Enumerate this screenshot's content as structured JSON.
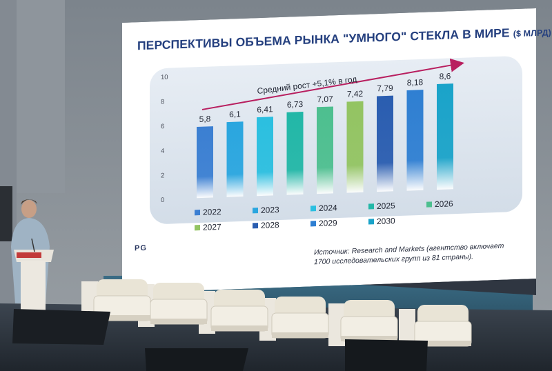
{
  "slide": {
    "title": "ПЕРСПЕКТИВЫ ОБЪЕМА РЫНКА \"УМНОГО\" СТЕКЛА В МИРЕ",
    "unit": "($ МЛРД)",
    "growth_label": "Средний рост +5,1% в год",
    "source": "Источник: Research and Markets (агентство включает 1700 исследовательских групп из 81 страны).",
    "logo": "PG"
  },
  "chart_data": {
    "type": "bar",
    "title": "ПЕРСПЕКТИВЫ ОБЪЕМА РЫНКА \"УМНОГО\" СТЕКЛА В МИРЕ ($ МЛРД)",
    "categories": [
      "2022",
      "2023",
      "2024",
      "2025",
      "2026",
      "2027",
      "2028",
      "2029",
      "2030"
    ],
    "values": [
      5.8,
      6.1,
      6.41,
      6.73,
      7.07,
      7.42,
      7.79,
      8.18,
      8.6
    ],
    "value_labels": [
      "5,8",
      "6,1",
      "6,41",
      "6,73",
      "7,07",
      "7,42",
      "7,79",
      "8,18",
      "8,6"
    ],
    "yticks": [
      "0",
      "2",
      "4",
      "6",
      "8",
      "10"
    ],
    "ylim": [
      0,
      10
    ],
    "grid": false,
    "legend_position": "bottom",
    "colors": [
      "#3b7fd2",
      "#2aa6df",
      "#2bbfe0",
      "#22b7a7",
      "#4dbf8f",
      "#93c462",
      "#2a5db0",
      "#2f7fd2",
      "#1aa3c9"
    ]
  },
  "scene": {
    "colors": {
      "hall_wall": "#8d949b",
      "slide_bg": "#ffffff",
      "title": "#25407f",
      "arrow": "#b81f5f",
      "armchair": "#e9e4d6",
      "screen_frame": "#2f3641"
    }
  }
}
